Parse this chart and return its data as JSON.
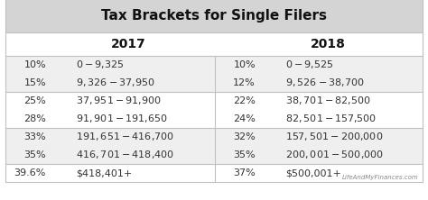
{
  "title": "Tax Brackets for Single Filers",
  "title_bg": "#d4d4d4",
  "table_bg": "#ffffff",
  "header_2017": "2017",
  "header_2018": "2018",
  "rows_2017": [
    [
      "10%",
      "$0-$9,325"
    ],
    [
      "15%",
      "$9,326-$37,950"
    ],
    [
      "25%",
      "$37,951-$91,900"
    ],
    [
      "28%",
      "$91,901-$191,650"
    ],
    [
      "33%",
      "$191,651-$416,700"
    ],
    [
      "35%",
      "$416,701-$418,400"
    ],
    [
      "39.6%",
      "$418,401+"
    ]
  ],
  "rows_2018": [
    [
      "10%",
      "$0-$9,525"
    ],
    [
      "12%",
      "$9,526-$38,700"
    ],
    [
      "22%",
      "$38,701-$82,500"
    ],
    [
      "24%",
      "$82,501-$157,500"
    ],
    [
      "32%",
      "$157,501-$200,000"
    ],
    [
      "35%",
      "$200,001-$500,000"
    ],
    [
      "37%",
      "$500,001+"
    ]
  ],
  "band_colors": [
    "#efefef",
    "#efefef",
    "#ffffff",
    "#ffffff",
    "#efefef",
    "#efefef",
    "#ffffff"
  ],
  "watermark": "LifeAndMyFinances.com",
  "border_color": "#c0c0c0",
  "text_color": "#333333",
  "header_color": "#111111"
}
